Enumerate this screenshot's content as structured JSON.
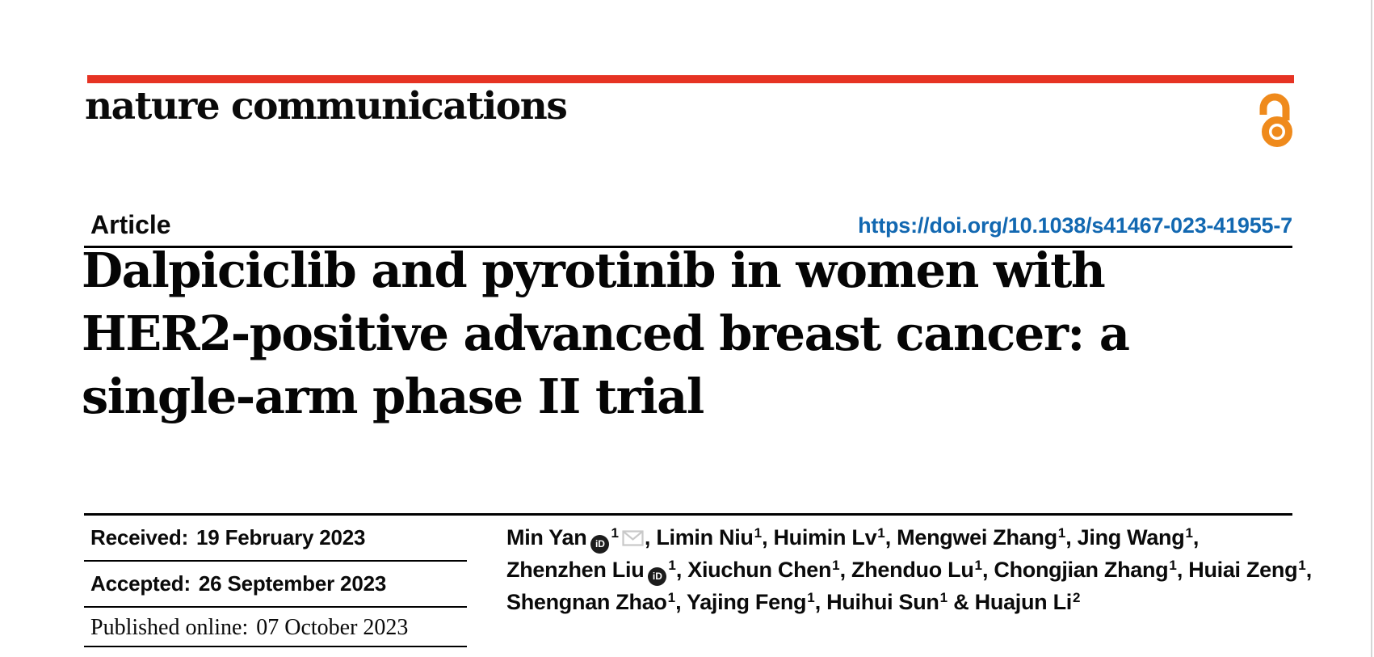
{
  "header": {
    "journal": "nature communications",
    "article_type": "Article",
    "doi": "https://doi.org/10.1038/s41467-023-41955-7"
  },
  "title": {
    "full": "Dalpiciclib and pyrotinib in women with HER2-positive advanced breast cancer: a single-arm phase II trial",
    "lines": [
      "Dalpiciclib and pyrotinib in women with",
      "HER2-positive advanced breast cancer: a",
      "single-arm phase II trial"
    ]
  },
  "dates": {
    "rows": [
      {
        "label": "Received:",
        "value": "19 February 2023"
      },
      {
        "label": "Accepted:",
        "value": "26 September 2023"
      },
      {
        "label": "Published online:",
        "value": "07 October 2023"
      }
    ]
  },
  "authors": {
    "lines": [
      [
        {
          "name": "Min Yan",
          "sup": "1",
          "orcid": true,
          "email": true,
          "after": ", "
        },
        {
          "name": "Limin Niu",
          "sup": "1",
          "after": ", "
        },
        {
          "name": "Huimin Lv",
          "sup": "1",
          "after": ", "
        },
        {
          "name": "Mengwei Zhang",
          "sup": "1",
          "after": ", "
        },
        {
          "name": "Jing Wang",
          "sup": "1",
          "after": ","
        }
      ],
      [
        {
          "name": "Zhenzhen Liu",
          "sup": "1",
          "orcid": true,
          "after": ", "
        },
        {
          "name": "Xiuchun Chen",
          "sup": "1",
          "after": ", "
        },
        {
          "name": "Zhenduo Lu",
          "sup": "1",
          "after": ", "
        },
        {
          "name": "Chongjian Zhang",
          "sup": "1",
          "after": ", "
        },
        {
          "name": "Huiai Zeng",
          "sup": "1",
          "after": ","
        }
      ],
      [
        {
          "name": "Shengnan Zhao",
          "sup": "1",
          "after": ", "
        },
        {
          "name": "Yajing Feng",
          "sup": "1",
          "after": ", "
        },
        {
          "name": "Huihui Sun",
          "sup": "1",
          "after": " & "
        },
        {
          "name": "Huajun Li",
          "sup": "2",
          "after": ""
        }
      ]
    ],
    "orcid_badge_text": "iD"
  },
  "icons": {
    "open_access": "open-padlock",
    "orcid": "orcid-id-badge",
    "email": "envelope"
  },
  "colors": {
    "brand_red": "#e63323",
    "open_access_orange": "#ef8a1c",
    "doi_blue": "#1268b1",
    "text_black": "#0a0a0a",
    "rule_black": "#000000",
    "envelope_gray": "#c9c9c9",
    "orcid_badge_bg": "#1c1c1c",
    "page_edge_gray": "#d5d5d5"
  }
}
